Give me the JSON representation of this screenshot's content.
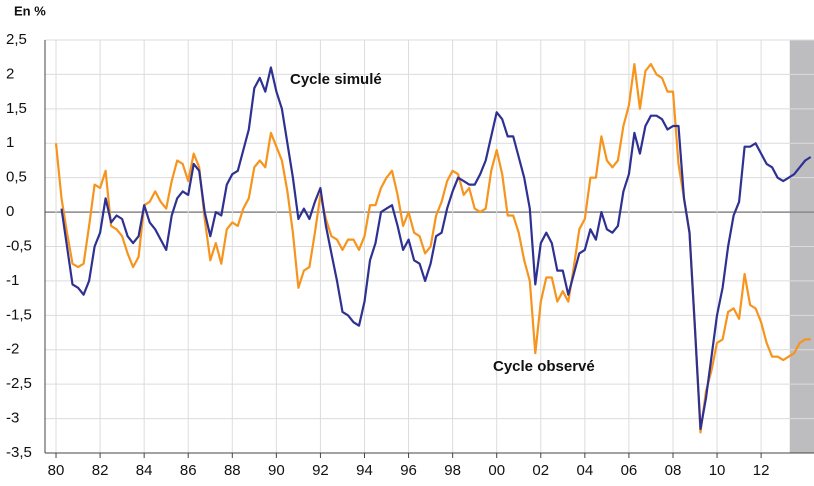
{
  "chart_data": {
    "type": "line",
    "y_unit_label": "En %",
    "x": [
      1980,
      1980.25,
      1980.5,
      1980.75,
      1981,
      1981.25,
      1981.5,
      1981.75,
      1982,
      1982.25,
      1982.5,
      1982.75,
      1983,
      1983.25,
      1983.5,
      1983.75,
      1984,
      1984.25,
      1984.5,
      1984.75,
      1985,
      1985.25,
      1985.5,
      1985.75,
      1986,
      1986.25,
      1986.5,
      1986.75,
      1987,
      1987.25,
      1987.5,
      1987.75,
      1988,
      1988.25,
      1988.5,
      1988.75,
      1989,
      1989.25,
      1989.5,
      1989.75,
      1990,
      1990.25,
      1990.5,
      1990.75,
      1991,
      1991.25,
      1991.5,
      1991.75,
      1992,
      1992.25,
      1992.5,
      1992.75,
      1993,
      1993.25,
      1993.5,
      1993.75,
      1994,
      1994.25,
      1994.5,
      1994.75,
      1995,
      1995.25,
      1995.5,
      1995.75,
      1996,
      1996.25,
      1996.5,
      1996.75,
      1997,
      1997.25,
      1997.5,
      1997.75,
      1998,
      1998.25,
      1998.5,
      1998.75,
      1999,
      1999.25,
      1999.5,
      1999.75,
      2000,
      2000.25,
      2000.5,
      2000.75,
      2001,
      2001.25,
      2001.5,
      2001.75,
      2002,
      2002.25,
      2002.5,
      2002.75,
      2003,
      2003.25,
      2003.5,
      2003.75,
      2004,
      2004.25,
      2004.5,
      2004.75,
      2005,
      2005.25,
      2005.5,
      2005.75,
      2006,
      2006.25,
      2006.5,
      2006.75,
      2007,
      2007.25,
      2007.5,
      2007.75,
      2008,
      2008.25,
      2008.5,
      2008.75,
      2009,
      2009.25,
      2009.5,
      2009.75,
      2010,
      2010.25,
      2010.5,
      2010.75,
      2011,
      2011.25,
      2011.5,
      2011.75,
      2012,
      2012.25,
      2012.5,
      2012.75,
      2013,
      2013.25,
      2013.5,
      2013.75,
      2014,
      2014.25
    ],
    "series": [
      {
        "name": "Cycle simulé",
        "color": "#2e3192",
        "label_color": "#1f5fa8",
        "values": [
          null,
          0.05,
          -0.5,
          -1.05,
          -1.1,
          -1.2,
          -1.0,
          -0.5,
          -0.3,
          0.2,
          -0.15,
          -0.05,
          -0.1,
          -0.35,
          -0.45,
          -0.35,
          0.1,
          -0.15,
          -0.25,
          -0.4,
          -0.55,
          -0.05,
          0.2,
          0.3,
          0.25,
          0.7,
          0.6,
          0.0,
          -0.35,
          0.0,
          -0.05,
          0.4,
          0.55,
          0.6,
          0.9,
          1.2,
          1.8,
          1.95,
          1.75,
          2.1,
          1.75,
          1.5,
          1.0,
          0.5,
          -0.1,
          0.05,
          -0.1,
          0.15,
          0.35,
          -0.2,
          -0.6,
          -1.0,
          -1.45,
          -1.5,
          -1.6,
          -1.65,
          -1.3,
          -0.7,
          -0.45,
          0.0,
          0.05,
          0.1,
          -0.2,
          -0.55,
          -0.4,
          -0.7,
          -0.75,
          -1.0,
          -0.75,
          -0.35,
          -0.3,
          0.05,
          0.3,
          0.5,
          0.45,
          0.4,
          0.4,
          0.55,
          0.75,
          1.1,
          1.45,
          1.35,
          1.1,
          1.1,
          0.8,
          0.5,
          0.05,
          -1.05,
          -0.45,
          -0.3,
          -0.45,
          -0.85,
          -0.85,
          -1.2,
          -0.9,
          -0.6,
          -0.55,
          -0.25,
          -0.4,
          0.0,
          -0.25,
          -0.3,
          -0.2,
          0.3,
          0.55,
          1.15,
          0.85,
          1.25,
          1.4,
          1.4,
          1.35,
          1.2,
          1.25,
          1.25,
          0.2,
          -0.3,
          -1.7,
          -3.15,
          -2.7,
          -2.1,
          -1.5,
          -1.1,
          -0.5,
          -0.05,
          0.15,
          0.95,
          0.95,
          1.0,
          0.85,
          0.7,
          0.65,
          0.5,
          0.45,
          0.5,
          0.55,
          0.65,
          0.75,
          0.8
        ]
      },
      {
        "name": "Cycle observé",
        "color": "#f7941d",
        "label_color": "#f7941d",
        "values": [
          1.0,
          0.2,
          -0.3,
          -0.75,
          -0.8,
          -0.75,
          -0.2,
          0.4,
          0.35,
          0.6,
          -0.2,
          -0.25,
          -0.35,
          -0.6,
          -0.8,
          -0.65,
          0.1,
          0.15,
          0.3,
          0.15,
          0.05,
          0.45,
          0.75,
          0.7,
          0.45,
          0.85,
          0.65,
          -0.1,
          -0.7,
          -0.45,
          -0.75,
          -0.25,
          -0.15,
          -0.2,
          0.05,
          0.2,
          0.65,
          0.75,
          0.65,
          1.15,
          0.95,
          0.75,
          0.3,
          -0.3,
          -1.1,
          -0.85,
          -0.8,
          -0.3,
          0.25,
          -0.1,
          -0.35,
          -0.4,
          -0.55,
          -0.4,
          -0.4,
          -0.55,
          -0.35,
          0.1,
          0.1,
          0.35,
          0.5,
          0.6,
          0.25,
          -0.2,
          0.0,
          -0.3,
          -0.35,
          -0.6,
          -0.5,
          -0.05,
          0.15,
          0.45,
          0.6,
          0.55,
          0.25,
          0.35,
          0.05,
          0.0,
          0.05,
          0.6,
          0.9,
          0.55,
          -0.05,
          -0.05,
          -0.3,
          -0.7,
          -1.0,
          -2.05,
          -1.3,
          -0.95,
          -0.95,
          -1.3,
          -1.15,
          -1.3,
          -0.8,
          -0.25,
          -0.1,
          0.5,
          0.5,
          1.1,
          0.75,
          0.65,
          0.75,
          1.25,
          1.55,
          2.15,
          1.5,
          2.05,
          2.15,
          2.0,
          1.95,
          1.75,
          1.75,
          0.7,
          0.2,
          -0.3,
          -1.7,
          -3.2,
          -2.6,
          -2.3,
          -1.9,
          -1.85,
          -1.45,
          -1.4,
          -1.55,
          -0.9,
          -1.35,
          -1.4,
          -1.6,
          -1.9,
          -2.1,
          -2.1,
          -2.15,
          -2.1,
          -2.05,
          -1.9,
          -1.85,
          -1.85
        ]
      }
    ],
    "xlim": [
      1979.5,
      2014.4
    ],
    "xticks": [
      {
        "value": 1980,
        "label": "80"
      },
      {
        "value": 1982,
        "label": "82"
      },
      {
        "value": 1984,
        "label": "84"
      },
      {
        "value": 1986,
        "label": "86"
      },
      {
        "value": 1988,
        "label": "88"
      },
      {
        "value": 1990,
        "label": "90"
      },
      {
        "value": 1992,
        "label": "92"
      },
      {
        "value": 1994,
        "label": "94"
      },
      {
        "value": 1996,
        "label": "96"
      },
      {
        "value": 1998,
        "label": "98"
      },
      {
        "value": 2000,
        "label": "00"
      },
      {
        "value": 2002,
        "label": "02"
      },
      {
        "value": 2004,
        "label": "04"
      },
      {
        "value": 2006,
        "label": "06"
      },
      {
        "value": 2008,
        "label": "08"
      },
      {
        "value": 2010,
        "label": "10"
      },
      {
        "value": 2012,
        "label": "12"
      }
    ],
    "ylim": [
      -3.5,
      2.5
    ],
    "yticks": [
      {
        "value": -3.5,
        "label": "-3,5"
      },
      -3,
      {
        "value": -2.5,
        "label": "-2,5"
      },
      -2,
      {
        "value": -1.5,
        "label": "-1,5"
      },
      -1,
      {
        "value": -0.5,
        "label": "-0,5"
      },
      0,
      {
        "value": 0.5,
        "label": "0,5"
      },
      1,
      {
        "value": 1.5,
        "label": "1,5"
      },
      2,
      {
        "value": 2.5,
        "label": "2,5"
      }
    ],
    "grid": true,
    "shaded_region": [
      2013.3,
      2014.4
    ],
    "shaded_color": "#bdbdc0"
  }
}
